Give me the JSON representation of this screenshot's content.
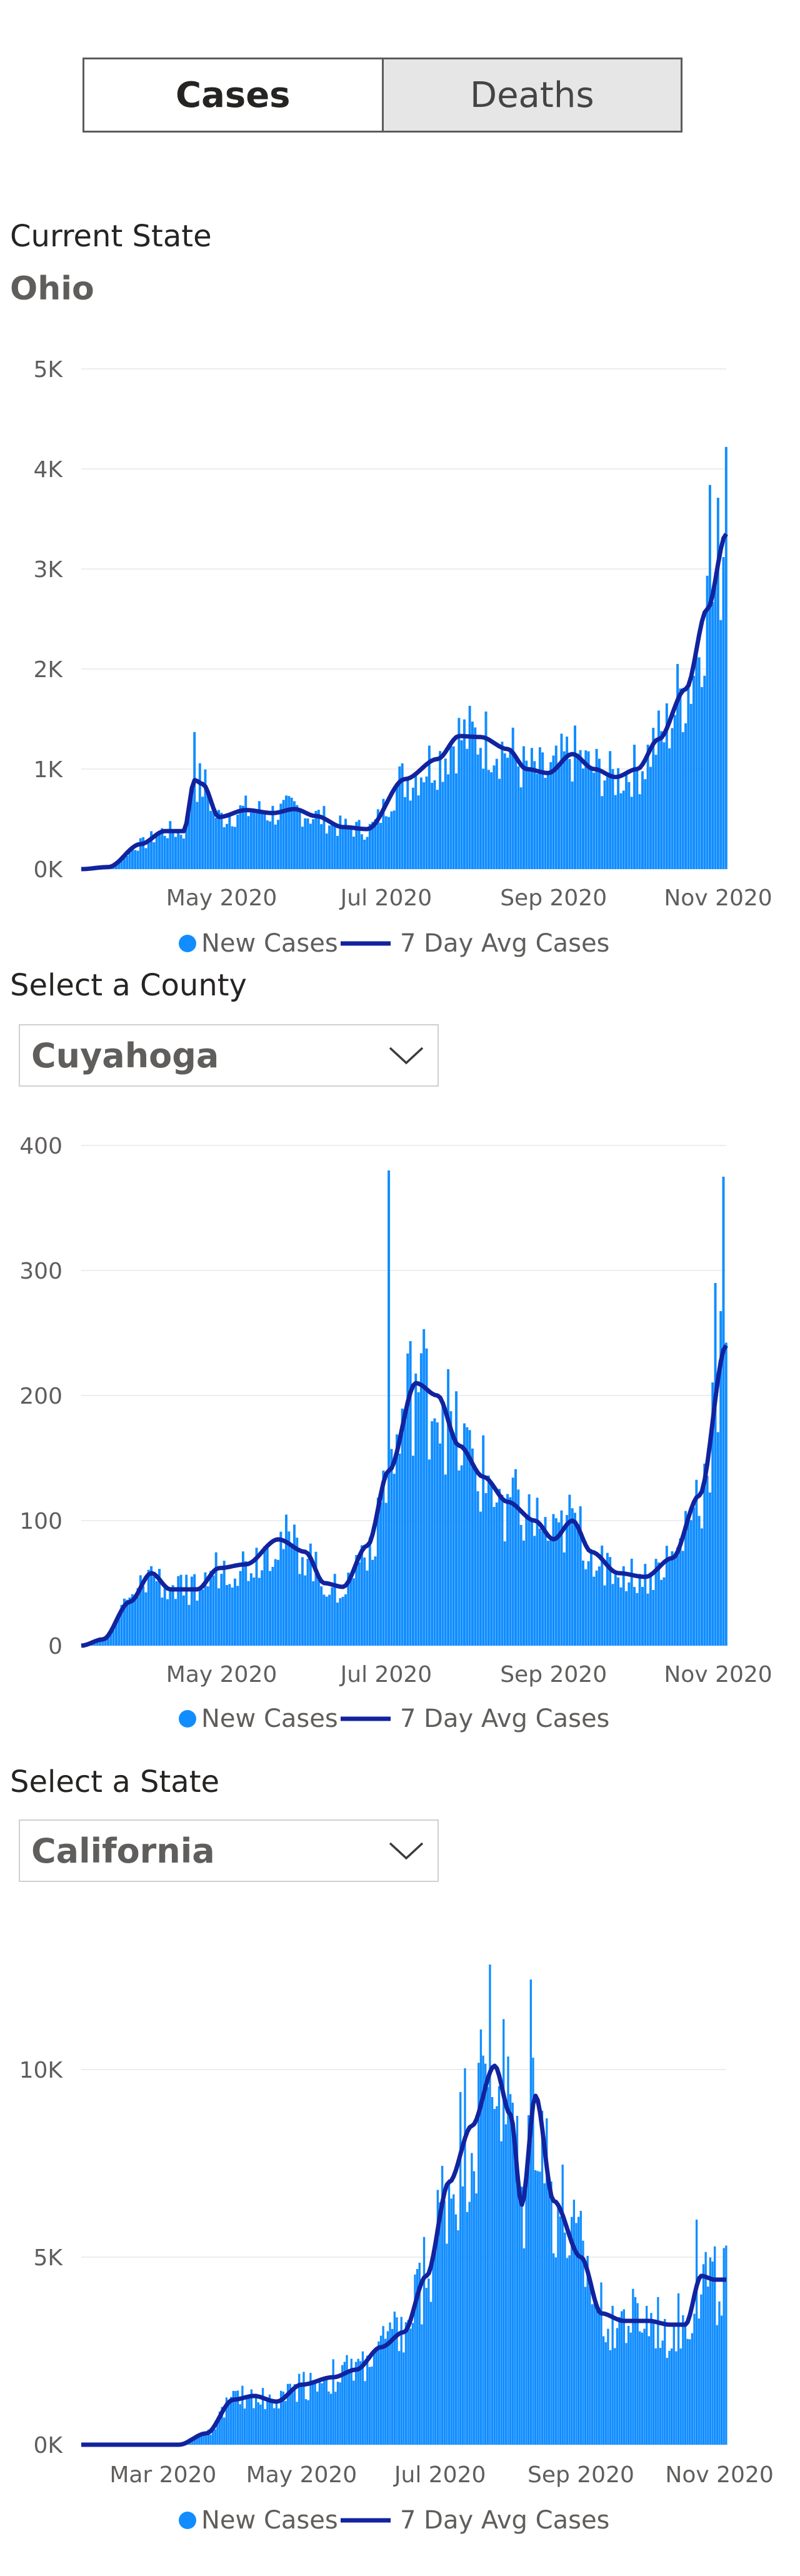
{
  "toggle": {
    "cases_label": "Cases",
    "deaths_label": "Deaths",
    "active": "cases"
  },
  "current_state": {
    "label": "Current State",
    "value": "Ohio"
  },
  "county_select": {
    "label": "Select a County",
    "value": "Cuyahoga"
  },
  "state_select": {
    "label": "Select a State",
    "value": "California"
  },
  "colors": {
    "bars": "#118dff",
    "avg_line": "#12239e",
    "grid": "#ededed"
  },
  "chart_data": [
    {
      "type": "bar",
      "title": "",
      "series": [
        {
          "name": "New Cases",
          "kind": "bar"
        },
        {
          "name": "7 Day Avg Cases",
          "kind": "line"
        }
      ],
      "x_range": [
        "2020-03-10",
        "2020-11-04"
      ],
      "x_ticks": [
        {
          "date": "2020-05-01",
          "label": "May 2020"
        },
        {
          "date": "2020-07-01",
          "label": "Jul 2020"
        },
        {
          "date": "2020-09-01",
          "label": "Sep 2020"
        },
        {
          "date": "2020-11-01",
          "label": "Nov 2020"
        }
      ],
      "y_ticks": [
        {
          "value": 0,
          "label": "0K"
        },
        {
          "value": 1000,
          "label": "1K"
        },
        {
          "value": 2000,
          "label": "2K"
        },
        {
          "value": 3000,
          "label": "3K"
        },
        {
          "value": 4000,
          "label": "4K"
        },
        {
          "value": 5000,
          "label": "5K"
        }
      ],
      "ylim": [
        0,
        5000
      ],
      "grid": true,
      "legend_placement": "bottom-center",
      "avg_keypoints": [
        [
          "2020-03-10",
          0
        ],
        [
          "2020-03-20",
          20
        ],
        [
          "2020-04-01",
          250
        ],
        [
          "2020-04-10",
          380
        ],
        [
          "2020-04-17",
          380
        ],
        [
          "2020-04-21",
          890
        ],
        [
          "2020-04-24",
          850
        ],
        [
          "2020-04-30",
          520
        ],
        [
          "2020-05-10",
          590
        ],
        [
          "2020-05-20",
          560
        ],
        [
          "2020-05-28",
          600
        ],
        [
          "2020-06-05",
          530
        ],
        [
          "2020-06-15",
          420
        ],
        [
          "2020-06-24",
          400
        ],
        [
          "2020-07-08",
          900
        ],
        [
          "2020-07-20",
          1100
        ],
        [
          "2020-07-28",
          1330
        ],
        [
          "2020-08-05",
          1320
        ],
        [
          "2020-08-15",
          1200
        ],
        [
          "2020-08-22",
          1000
        ],
        [
          "2020-08-30",
          960
        ],
        [
          "2020-09-08",
          1150
        ],
        [
          "2020-09-16",
          1000
        ],
        [
          "2020-09-24",
          920
        ],
        [
          "2020-10-02",
          1000
        ],
        [
          "2020-10-10",
          1300
        ],
        [
          "2020-10-20",
          1800
        ],
        [
          "2020-10-28",
          2600
        ],
        [
          "2020-11-04",
          3350
        ]
      ],
      "spikes": [
        [
          "2020-04-21",
          1370
        ],
        [
          "2020-10-29",
          3840
        ],
        [
          "2020-11-04",
          4220
        ]
      ]
    },
    {
      "type": "bar",
      "title": "",
      "series": [
        {
          "name": "New Cases",
          "kind": "bar"
        },
        {
          "name": "7 Day Avg Cases",
          "kind": "line"
        }
      ],
      "x_range": [
        "2020-03-10",
        "2020-11-04"
      ],
      "x_ticks": [
        {
          "date": "2020-05-01",
          "label": "May 2020"
        },
        {
          "date": "2020-07-01",
          "label": "Jul 2020"
        },
        {
          "date": "2020-09-01",
          "label": "Sep 2020"
        },
        {
          "date": "2020-11-01",
          "label": "Nov 2020"
        }
      ],
      "y_ticks": [
        {
          "value": 0,
          "label": "0"
        },
        {
          "value": 100,
          "label": "100"
        },
        {
          "value": 200,
          "label": "200"
        },
        {
          "value": 300,
          "label": "300"
        },
        {
          "value": 400,
          "label": "400"
        }
      ],
      "ylim": [
        0,
        400
      ],
      "grid": true,
      "legend_placement": "bottom-center",
      "avg_keypoints": [
        [
          "2020-03-10",
          0
        ],
        [
          "2020-03-18",
          5
        ],
        [
          "2020-03-28",
          35
        ],
        [
          "2020-04-05",
          58
        ],
        [
          "2020-04-12",
          45
        ],
        [
          "2020-04-22",
          45
        ],
        [
          "2020-04-30",
          62
        ],
        [
          "2020-05-10",
          65
        ],
        [
          "2020-05-22",
          85
        ],
        [
          "2020-06-01",
          75
        ],
        [
          "2020-06-08",
          50
        ],
        [
          "2020-06-15",
          47
        ],
        [
          "2020-06-24",
          80
        ],
        [
          "2020-07-02",
          140
        ],
        [
          "2020-07-12",
          210
        ],
        [
          "2020-07-20",
          200
        ],
        [
          "2020-07-28",
          160
        ],
        [
          "2020-08-06",
          135
        ],
        [
          "2020-08-15",
          115
        ],
        [
          "2020-08-25",
          100
        ],
        [
          "2020-09-01",
          85
        ],
        [
          "2020-09-08",
          100
        ],
        [
          "2020-09-15",
          75
        ],
        [
          "2020-09-25",
          58
        ],
        [
          "2020-10-05",
          55
        ],
        [
          "2020-10-15",
          70
        ],
        [
          "2020-10-25",
          120
        ],
        [
          "2020-11-04",
          240
        ]
      ],
      "spikes": [
        [
          "2020-07-02",
          380
        ],
        [
          "2020-11-03",
          375
        ],
        [
          "2020-10-31",
          290
        ]
      ]
    },
    {
      "type": "bar",
      "title": "",
      "series": [
        {
          "name": "New Cases",
          "kind": "bar"
        },
        {
          "name": "7 Day Avg Cases",
          "kind": "line"
        }
      ],
      "x_range": [
        "2020-01-25",
        "2020-11-04"
      ],
      "x_ticks": [
        {
          "date": "2020-03-01",
          "label": "Mar 2020"
        },
        {
          "date": "2020-05-01",
          "label": "May 2020"
        },
        {
          "date": "2020-07-01",
          "label": "Jul 2020"
        },
        {
          "date": "2020-09-01",
          "label": "Sep 2020"
        },
        {
          "date": "2020-11-01",
          "label": "Nov 2020"
        }
      ],
      "y_ticks": [
        {
          "value": 0,
          "label": "0K"
        },
        {
          "value": 5000,
          "label": "5K"
        },
        {
          "value": 10000,
          "label": "10K"
        }
      ],
      "ylim": [
        0,
        13000
      ],
      "grid": true,
      "legend_placement": "bottom-center",
      "avg_keypoints": [
        [
          "2020-01-25",
          0
        ],
        [
          "2020-03-08",
          0
        ],
        [
          "2020-03-20",
          300
        ],
        [
          "2020-04-01",
          1200
        ],
        [
          "2020-04-10",
          1300
        ],
        [
          "2020-04-20",
          1150
        ],
        [
          "2020-05-01",
          1600
        ],
        [
          "2020-05-15",
          1800
        ],
        [
          "2020-05-25",
          2000
        ],
        [
          "2020-06-05",
          2600
        ],
        [
          "2020-06-15",
          3000
        ],
        [
          "2020-06-25",
          4500
        ],
        [
          "2020-07-05",
          7000
        ],
        [
          "2020-07-15",
          8500
        ],
        [
          "2020-07-25",
          10100
        ],
        [
          "2020-08-01",
          8800
        ],
        [
          "2020-08-06",
          6400
        ],
        [
          "2020-08-12",
          9300
        ],
        [
          "2020-08-20",
          6500
        ],
        [
          "2020-09-01",
          5000
        ],
        [
          "2020-09-10",
          3500
        ],
        [
          "2020-09-20",
          3300
        ],
        [
          "2020-10-01",
          3300
        ],
        [
          "2020-10-10",
          3200
        ],
        [
          "2020-10-17",
          3200
        ],
        [
          "2020-10-24",
          4500
        ],
        [
          "2020-10-30",
          4400
        ],
        [
          "2020-11-04",
          4400
        ]
      ],
      "spikes": [
        [
          "2020-07-23",
          12800
        ],
        [
          "2020-08-10",
          12400
        ],
        [
          "2020-10-22",
          6000
        ]
      ]
    }
  ],
  "legend": {
    "new_cases": "New Cases",
    "avg_cases": "7 Day Avg Cases"
  }
}
